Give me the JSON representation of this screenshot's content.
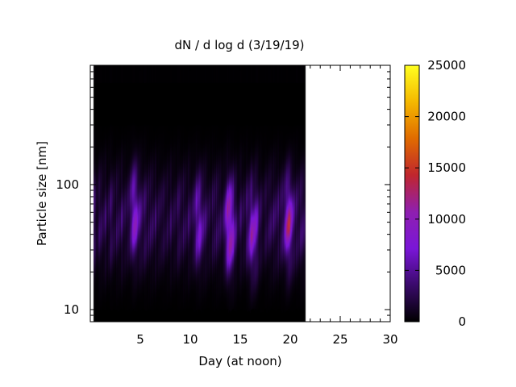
{
  "chart_data": {
    "type": "heatmap",
    "title": "dN / d log d (3/19/19)",
    "xlabel": "Day (at noon)",
    "ylabel": "Particle size [nm]",
    "xlim": [
      0,
      30
    ],
    "ylim": [
      8,
      900
    ],
    "y_scale": "log",
    "x_ticks": [
      5,
      10,
      15,
      20,
      25,
      30
    ],
    "y_ticks": [
      10,
      100
    ],
    "data_x_range": [
      0.3,
      21.5
    ],
    "colorbar": {
      "min": 0,
      "max": 25000,
      "ticks": [
        0,
        5000,
        10000,
        15000,
        20000,
        25000
      ],
      "colormap": [
        "#000000",
        "#3a0a6b",
        "#7a16d8",
        "#8f1fb0",
        "#c0262e",
        "#e06b00",
        "#f5b800",
        "#ffff20"
      ]
    },
    "intensity_peaks": [
      {
        "day": 13.9,
        "size_nm": 45,
        "value": 12500
      },
      {
        "day": 19.8,
        "size_nm": 50,
        "value": 11000
      },
      {
        "day": 4.4,
        "size_nm": 60,
        "value": 8000
      },
      {
        "day": 16.2,
        "size_nm": 40,
        "value": 8500
      },
      {
        "day": 10.8,
        "size_nm": 50,
        "value": 7000
      }
    ],
    "grid": false
  }
}
